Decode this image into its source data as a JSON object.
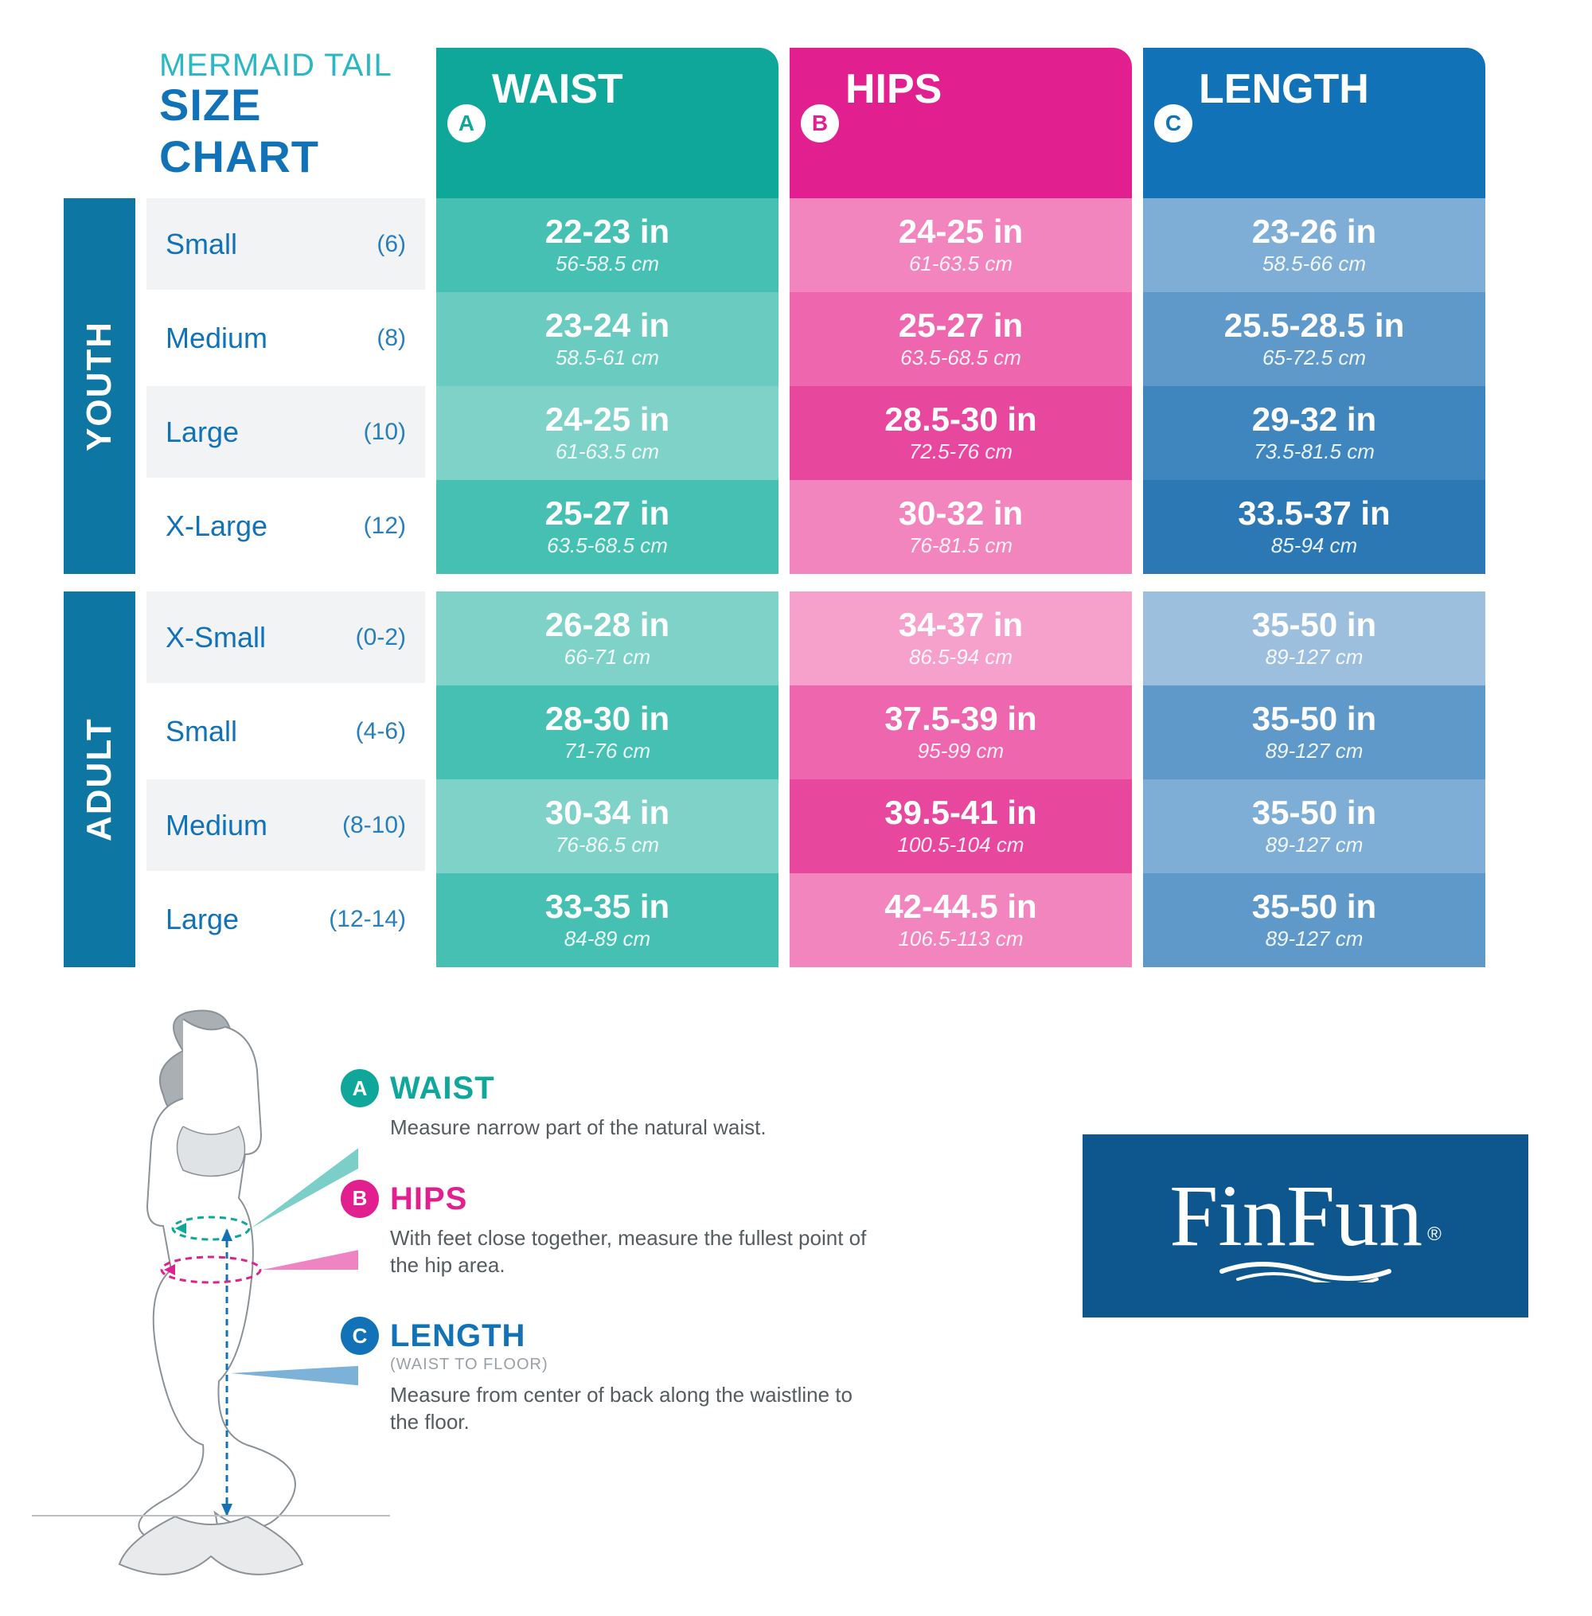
{
  "title": {
    "line1": "MERMAID TAIL",
    "line2": "SIZE CHART",
    "color1": "#2ab8c4",
    "color2": "#1172b8"
  },
  "columns": [
    {
      "key": "waist",
      "letter": "A",
      "label": "WAIST",
      "header_bg": "#0ea79a",
      "badge_fg": "#0ea79a",
      "shades": [
        "#46c0b2",
        "#6acbc0",
        "#7ed2c8",
        "#46c0b2",
        "#7ed2c8",
        "#46c0b2",
        "#7ed2c8",
        "#46c0b2"
      ]
    },
    {
      "key": "hips",
      "letter": "B",
      "label": "HIPS",
      "header_bg": "#e21f8f",
      "badge_fg": "#e21f8f",
      "shades": [
        "#f285be",
        "#ed66ae",
        "#e8479e",
        "#f285be",
        "#f6a0cc",
        "#ed66ae",
        "#e8479e",
        "#f285be"
      ]
    },
    {
      "key": "length",
      "letter": "C",
      "label": "LENGTH",
      "header_bg": "#1172b8",
      "badge_fg": "#1172b8",
      "shades": [
        "#7eaed6",
        "#5e99ca",
        "#3f85be",
        "#2b78b5",
        "#9cbfde",
        "#5e99ca",
        "#7eaed6",
        "#5e99ca"
      ]
    }
  ],
  "categories": [
    {
      "label": "YOUTH",
      "bg": "#0d76a3",
      "size_text": "#1172b8",
      "rows": [
        {
          "row_bg": "#f2f3f4",
          "name": "Small",
          "num": "(6)",
          "waist": {
            "in": "22-23 in",
            "cm": "56-58.5 cm"
          },
          "hips": {
            "in": "24-25 in",
            "cm": "61-63.5 cm"
          },
          "length": {
            "in": "23-26 in",
            "cm": "58.5-66 cm"
          }
        },
        {
          "row_bg": "#ffffff",
          "name": "Medium",
          "num": "(8)",
          "waist": {
            "in": "23-24 in",
            "cm": "58.5-61 cm"
          },
          "hips": {
            "in": "25-27 in",
            "cm": "63.5-68.5 cm"
          },
          "length": {
            "in": "25.5-28.5 in",
            "cm": "65-72.5 cm"
          }
        },
        {
          "row_bg": "#f2f3f4",
          "name": "Large",
          "num": "(10)",
          "waist": {
            "in": "24-25 in",
            "cm": "61-63.5 cm"
          },
          "hips": {
            "in": "28.5-30 in",
            "cm": "72.5-76 cm"
          },
          "length": {
            "in": "29-32 in",
            "cm": "73.5-81.5 cm"
          }
        },
        {
          "row_bg": "#ffffff",
          "name": "X-Large",
          "num": "(12)",
          "waist": {
            "in": "25-27 in",
            "cm": "63.5-68.5 cm"
          },
          "hips": {
            "in": "30-32 in",
            "cm": "76-81.5 cm"
          },
          "length": {
            "in": "33.5-37 in",
            "cm": "85-94 cm"
          }
        }
      ]
    },
    {
      "label": "ADULT",
      "bg": "#0d76a3",
      "size_text": "#1172b8",
      "rows": [
        {
          "row_bg": "#f2f3f4",
          "name": "X-Small",
          "num": "(0-2)",
          "waist": {
            "in": "26-28 in",
            "cm": "66-71 cm"
          },
          "hips": {
            "in": "34-37 in",
            "cm": "86.5-94 cm"
          },
          "length": {
            "in": "35-50 in",
            "cm": "89-127 cm"
          }
        },
        {
          "row_bg": "#ffffff",
          "name": "Small",
          "num": "(4-6)",
          "waist": {
            "in": "28-30 in",
            "cm": "71-76 cm"
          },
          "hips": {
            "in": "37.5-39 in",
            "cm": "95-99 cm"
          },
          "length": {
            "in": "35-50 in",
            "cm": "89-127 cm"
          }
        },
        {
          "row_bg": "#f2f3f4",
          "name": "Medium",
          "num": "(8-10)",
          "waist": {
            "in": "30-34 in",
            "cm": "76-86.5 cm"
          },
          "hips": {
            "in": "39.5-41 in",
            "cm": "100.5-104 cm"
          },
          "length": {
            "in": "35-50 in",
            "cm": "89-127 cm"
          }
        },
        {
          "row_bg": "#ffffff",
          "name": "Large",
          "num": "(12-14)",
          "waist": {
            "in": "33-35 in",
            "cm": "84-89 cm"
          },
          "hips": {
            "in": "42-44.5 in",
            "cm": "106.5-113 cm"
          },
          "length": {
            "in": "35-50 in",
            "cm": "89-127 cm"
          }
        }
      ]
    }
  ],
  "guide": {
    "items": [
      {
        "letter": "A",
        "circ_bg": "#0ea79a",
        "title": "WAIST",
        "title_color": "#0ea79a",
        "sub": "",
        "desc": "Measure narrow part of the natural waist."
      },
      {
        "letter": "B",
        "circ_bg": "#e21f8f",
        "title": "HIPS",
        "title_color": "#e21f8f",
        "sub": "",
        "desc": "With feet close together, measure the fullest point of the hip area."
      },
      {
        "letter": "C",
        "circ_bg": "#1172b8",
        "title": "LENGTH",
        "title_color": "#1172b8",
        "sub": "(WAIST TO FLOOR)",
        "desc": "Measure from center of back along the waistline to the floor."
      }
    ],
    "pointer_colors": {
      "A": "#0ea79a",
      "B": "#e21f8f",
      "C": "#1172b8"
    },
    "figure_stroke": "#8a9197",
    "figure_hair": "#a9afb3",
    "tail_fill": "#e8eaec"
  },
  "logo": {
    "text": "FinFun",
    "reg": "®",
    "bg": "#0d578e",
    "fg": "#ffffff"
  }
}
